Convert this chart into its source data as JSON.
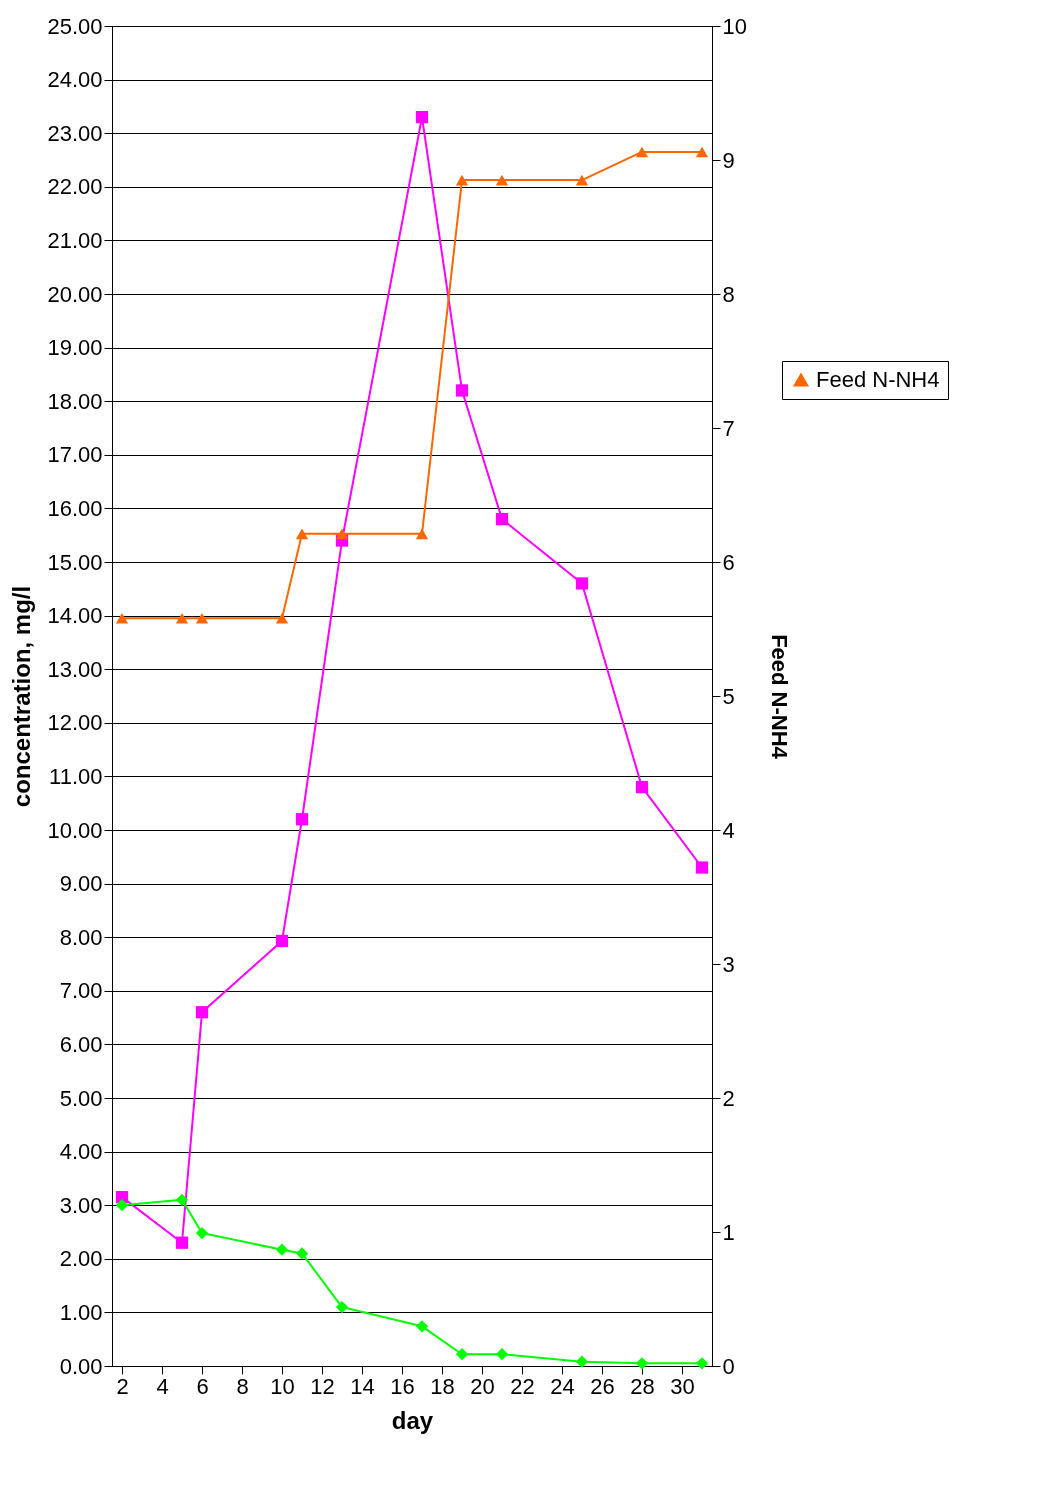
{
  "chart_data": {
    "type": "line",
    "xlabel": "day",
    "ylabel": "concentration, mg/l",
    "y2label": "Feed N-NH4",
    "x": [
      2,
      5,
      6,
      10,
      11,
      13,
      17,
      19,
      21,
      25,
      28,
      31
    ],
    "series": [
      {
        "color": "#ff00ff",
        "marker": "square",
        "values": [
          3.15,
          2.3,
          6.6,
          7.93,
          10.2,
          15.4,
          23.3,
          18.2,
          15.8,
          14.6,
          10.8,
          9.3
        ]
      },
      {
        "color": "#00ff00",
        "marker": "diamond",
        "values": [
          3.0,
          3.1,
          2.48,
          2.17,
          2.1,
          1.1,
          0.74,
          0.22,
          0.22,
          0.08,
          0.05,
          0.05
        ]
      },
      {
        "name": "Feed N-NH4",
        "color": "#ff6600",
        "marker": "triangle",
        "axis": "y2",
        "values": [
          5.58,
          5.58,
          5.58,
          5.58,
          6.21,
          6.21,
          6.21,
          8.85,
          8.85,
          8.85,
          9.06,
          9.06
        ]
      }
    ],
    "xlim": [
      1.5,
      31.5
    ],
    "xticks": [
      2,
      4,
      6,
      8,
      10,
      12,
      14,
      16,
      18,
      20,
      22,
      24,
      26,
      28,
      30
    ],
    "ylim": [
      0,
      25
    ],
    "yticks": [
      {
        "value": 0,
        "label": "0.00"
      },
      {
        "value": 1,
        "label": "1.00"
      },
      {
        "value": 2,
        "label": "2.00"
      },
      {
        "value": 3,
        "label": "3.00"
      },
      {
        "value": 4,
        "label": "4.00"
      },
      {
        "value": 5,
        "label": "5.00"
      },
      {
        "value": 6,
        "label": "6.00"
      },
      {
        "value": 7,
        "label": "7.00"
      },
      {
        "value": 8,
        "label": "8.00"
      },
      {
        "value": 9,
        "label": "9.00"
      },
      {
        "value": 10,
        "label": "10.00"
      },
      {
        "value": 11,
        "label": "11.00"
      },
      {
        "value": 12,
        "label": "12.00"
      },
      {
        "value": 13,
        "label": "13.00"
      },
      {
        "value": 14,
        "label": "14.00"
      },
      {
        "value": 15,
        "label": "15.00"
      },
      {
        "value": 16,
        "label": "16.00"
      },
      {
        "value": 17,
        "label": "17.00"
      },
      {
        "value": 18,
        "label": "18.00"
      },
      {
        "value": 19,
        "label": "19.00"
      },
      {
        "value": 20,
        "label": "20.00"
      },
      {
        "value": 21,
        "label": "21.00"
      },
      {
        "value": 22,
        "label": "22.00"
      },
      {
        "value": 23,
        "label": "23.00"
      },
      {
        "value": 24,
        "label": "24.00"
      },
      {
        "value": 25,
        "label": "25.00"
      }
    ],
    "y2lim": [
      0,
      10
    ],
    "y2ticks": [
      0,
      1,
      2,
      3,
      4,
      5,
      6,
      7,
      8,
      9,
      10
    ],
    "grid": "y",
    "legend": "right",
    "line_style": "solid"
  }
}
